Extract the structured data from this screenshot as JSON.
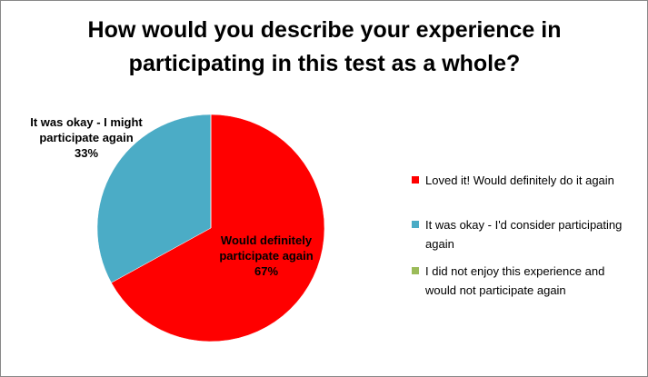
{
  "chart_data": {
    "type": "pie",
    "title": "How would you describe your experience in participating in this test as a whole?",
    "categories": [
      "Loved it! Would definitely do it again",
      "It was okay - I'd consider participating again",
      "I did not enjoy this experience and would not participate again"
    ],
    "values": [
      67,
      33,
      0
    ],
    "value_labels": [
      "67%",
      "33%",
      null
    ],
    "data_label_names": [
      "Would definitely participate again",
      "It was okay - I might participate again",
      null
    ],
    "colors": [
      "#ff0000",
      "#4bacc6",
      "#9bbb59"
    ]
  }
}
